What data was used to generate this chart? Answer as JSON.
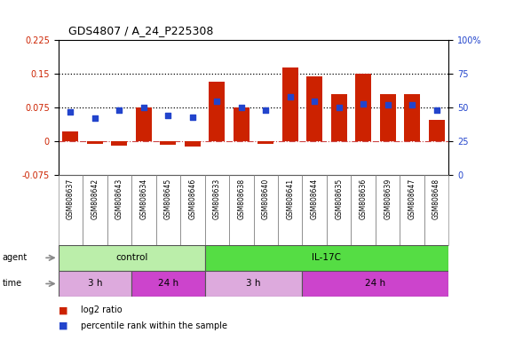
{
  "title": "GDS4807 / A_24_P225308",
  "samples": [
    "GSM808637",
    "GSM808642",
    "GSM808643",
    "GSM808634",
    "GSM808645",
    "GSM808646",
    "GSM808633",
    "GSM808638",
    "GSM808640",
    "GSM808641",
    "GSM808644",
    "GSM808635",
    "GSM808636",
    "GSM808639",
    "GSM808647",
    "GSM808648"
  ],
  "log2_ratio": [
    0.022,
    -0.005,
    -0.01,
    0.075,
    -0.008,
    -0.012,
    0.133,
    0.075,
    -0.005,
    0.165,
    0.145,
    0.105,
    0.15,
    0.105,
    0.105,
    0.048
  ],
  "pct_rank": [
    47,
    42,
    48,
    50,
    44,
    43,
    55,
    50,
    48,
    58,
    55,
    50,
    53,
    52,
    52,
    48
  ],
  "ylim_left": [
    -0.075,
    0.225
  ],
  "ylim_right": [
    0,
    100
  ],
  "yticks_left": [
    -0.075,
    0,
    0.075,
    0.15,
    0.225
  ],
  "yticks_right": [
    0,
    25,
    50,
    75,
    100
  ],
  "hlines": [
    0.075,
    0.15
  ],
  "bar_color": "#cc2200",
  "dot_color": "#2244cc",
  "zero_line_color": "#cc4444",
  "left_tick_color": "#cc2200",
  "right_tick_color": "#2244cc",
  "agent_groups": [
    {
      "label": "control",
      "start": 0,
      "end": 6,
      "color": "#bbeeaa"
    },
    {
      "label": "IL-17C",
      "start": 6,
      "end": 16,
      "color": "#55dd44"
    }
  ],
  "time_groups": [
    {
      "label": "3 h",
      "start": 0,
      "end": 3,
      "color": "#ddaadd"
    },
    {
      "label": "24 h",
      "start": 3,
      "end": 6,
      "color": "#cc44cc"
    },
    {
      "label": "3 h",
      "start": 6,
      "end": 10,
      "color": "#ddaadd"
    },
    {
      "label": "24 h",
      "start": 10,
      "end": 16,
      "color": "#cc44cc"
    }
  ],
  "legend_red": "log2 ratio",
  "legend_blue": "percentile rank within the sample",
  "agent_label": "agent",
  "time_label": "time",
  "bg_color": "#ffffff",
  "plot_bg": "#ffffff",
  "sample_row_color": "#cccccc"
}
